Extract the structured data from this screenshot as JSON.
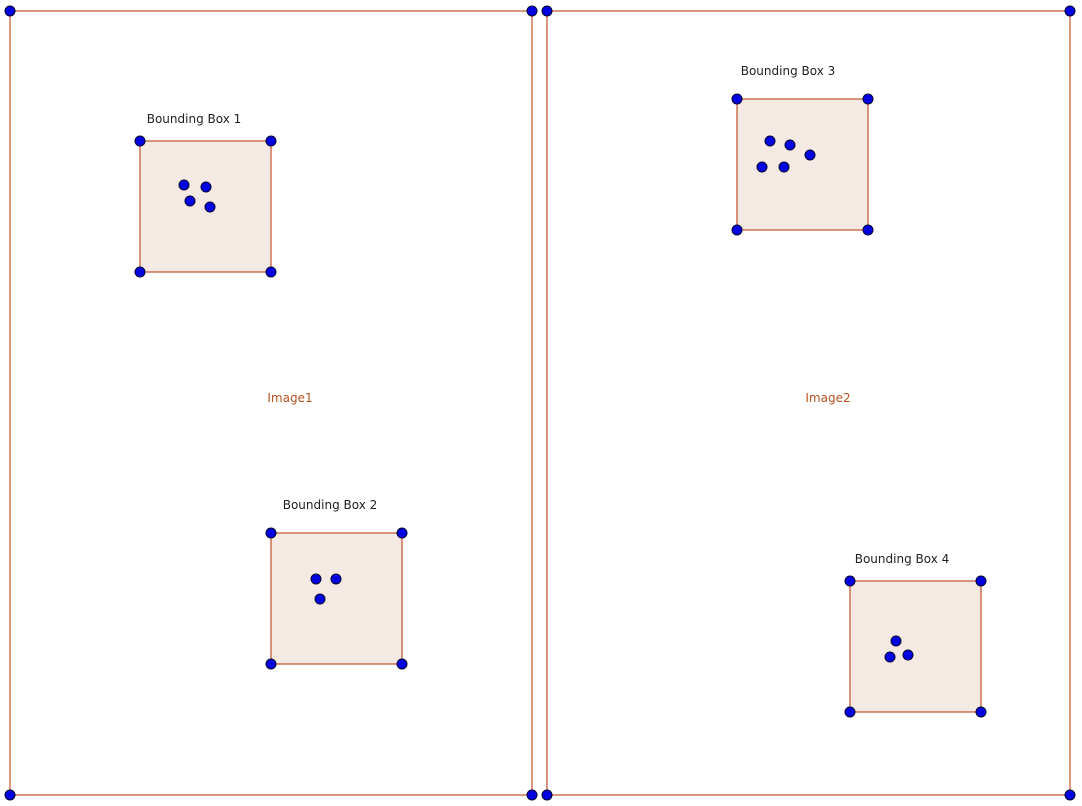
{
  "colors": {
    "edge": "#c0502a",
    "box_fill": "#f4e9e3",
    "point_fill": "#0000e0",
    "point_stroke": "#000033",
    "box_label": "#222222",
    "image_label": "#b8501f"
  },
  "images": [
    {
      "label": "Image1",
      "boxes": [
        {
          "label": "Bounding Box 1",
          "points": 4
        },
        {
          "label": "Bounding Box 2",
          "points": 3
        }
      ]
    },
    {
      "label": "Image2",
      "boxes": [
        {
          "label": "Bounding Box 3",
          "points": 5
        },
        {
          "label": "Bounding Box 4",
          "points": 3
        }
      ]
    }
  ]
}
